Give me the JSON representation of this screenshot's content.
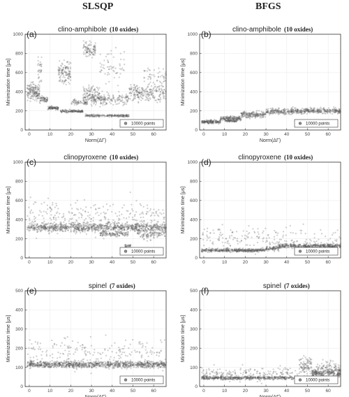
{
  "columns": [
    "SLSQP",
    "BFGS"
  ],
  "chart_data": [
    {
      "type": "scatter",
      "letter": "(a)",
      "title": "clino-amphibole",
      "subtitle": "(10 oxides)",
      "xlabel": "Norm(ΔΓ)",
      "ylabel": "Minimization time [μs]",
      "xlim": [
        -2,
        66
      ],
      "ylim": [
        0,
        1000
      ],
      "xticks": [
        0,
        10,
        20,
        30,
        40,
        50,
        60
      ],
      "yticks": [
        0,
        200,
        400,
        600,
        800,
        1000
      ],
      "legend": "10000 points",
      "legend_position": "bottom-right",
      "grid": true,
      "clusters": [
        {
          "x": [
            -1,
            5
          ],
          "y": 400,
          "spread": 60,
          "n": 160
        },
        {
          "x": [
            4,
            6
          ],
          "y": 640,
          "spread": 80,
          "n": 30
        },
        {
          "x": [
            5,
            9
          ],
          "y": 320,
          "spread": 25,
          "n": 60
        },
        {
          "x": [
            9,
            14
          ],
          "y": 230,
          "spread": 12,
          "n": 90
        },
        {
          "x": [
            14,
            20
          ],
          "y": 600,
          "spread": 80,
          "n": 120
        },
        {
          "x": [
            15,
            26
          ],
          "y": 195,
          "spread": 10,
          "n": 140
        },
        {
          "x": [
            20,
            28
          ],
          "y": 290,
          "spread": 20,
          "n": 60
        },
        {
          "x": [
            26,
            32
          ],
          "y": 840,
          "spread": 50,
          "n": 90
        },
        {
          "x": [
            26,
            34
          ],
          "y": 370,
          "spread": 60,
          "n": 120
        },
        {
          "x": [
            27,
            48
          ],
          "y": 150,
          "spread": 10,
          "n": 200
        },
        {
          "x": [
            30,
            48
          ],
          "y": 320,
          "spread": 40,
          "n": 170
        },
        {
          "x": [
            34,
            46
          ],
          "y": 650,
          "spread": 140,
          "n": 60
        },
        {
          "x": [
            48,
            66
          ],
          "y": 390,
          "spread": 60,
          "n": 220
        },
        {
          "x": [
            55,
            66
          ],
          "y": 560,
          "spread": 60,
          "n": 50
        }
      ]
    },
    {
      "type": "scatter",
      "letter": "(b)",
      "title": "clino-amphibole",
      "subtitle": "(10 oxides)",
      "xlabel": "Norm(ΔΓ)",
      "ylabel": "Minimization time [μs]",
      "xlim": [
        -2,
        66
      ],
      "ylim": [
        0,
        1000
      ],
      "xticks": [
        0,
        10,
        20,
        30,
        40,
        50,
        60
      ],
      "yticks": [
        0,
        200,
        400,
        600,
        800,
        1000
      ],
      "legend": "10000 points",
      "legend_position": "bottom-right",
      "grid": true,
      "clusters": [
        {
          "x": [
            -1,
            8
          ],
          "y": 85,
          "spread": 12,
          "n": 160
        },
        {
          "x": [
            8,
            18
          ],
          "y": 120,
          "spread": 18,
          "n": 160
        },
        {
          "x": [
            10,
            16
          ],
          "y": 95,
          "spread": 8,
          "n": 60
        },
        {
          "x": [
            18,
            30
          ],
          "y": 160,
          "spread": 22,
          "n": 180
        },
        {
          "x": [
            30,
            48
          ],
          "y": 195,
          "spread": 22,
          "n": 240
        },
        {
          "x": [
            48,
            66
          ],
          "y": 200,
          "spread": 20,
          "n": 240
        }
      ]
    },
    {
      "type": "scatter",
      "letter": "(c)",
      "title": "clinopyroxene",
      "subtitle": "(10 oxides)",
      "xlabel": "",
      "ylabel": "Minimization time [μs]",
      "xlim": [
        -2,
        66
      ],
      "ylim": [
        0,
        1000
      ],
      "xticks": [
        0,
        10,
        20,
        30,
        40,
        50,
        60
      ],
      "yticks": [
        0,
        200,
        400,
        600,
        800,
        1000
      ],
      "legend": "10000 points",
      "legend_position": "bottom-right",
      "grid": true,
      "clusters": [
        {
          "x": [
            -1,
            66
          ],
          "y": 320,
          "spread": 30,
          "n": 900
        },
        {
          "x": [
            -1,
            66
          ],
          "y": 420,
          "spread": 120,
          "n": 300
        },
        {
          "x": [
            34,
            48
          ],
          "y": 250,
          "spread": 20,
          "n": 120
        },
        {
          "x": [
            46,
            49
          ],
          "y": 125,
          "spread": 15,
          "n": 30
        },
        {
          "x": [
            52,
            66
          ],
          "y": 250,
          "spread": 40,
          "n": 120
        }
      ]
    },
    {
      "type": "scatter",
      "letter": "(d)",
      "title": "clinopyroxene",
      "subtitle": "(10 oxides)",
      "xlabel": "",
      "ylabel": "Minimization time [μs]",
      "xlim": [
        -2,
        66
      ],
      "ylim": [
        0,
        1000
      ],
      "xticks": [
        0,
        10,
        20,
        30,
        40,
        50,
        60
      ],
      "yticks": [
        0,
        200,
        400,
        600,
        800,
        1000
      ],
      "legend": "10000 points",
      "legend_position": "bottom-right",
      "grid": true,
      "clusters": [
        {
          "x": [
            -1,
            30
          ],
          "y": 80,
          "spread": 12,
          "n": 420
        },
        {
          "x": [
            30,
            36
          ],
          "y": 100,
          "spread": 15,
          "n": 80
        },
        {
          "x": [
            36,
            66
          ],
          "y": 125,
          "spread": 15,
          "n": 420
        },
        {
          "x": [
            -1,
            66
          ],
          "y": 200,
          "spread": 90,
          "n": 200
        }
      ]
    },
    {
      "type": "scatter",
      "letter": "(e)",
      "title": "spinel",
      "subtitle": "(7 oxides)",
      "xlabel": "Norm(ΔΓ)",
      "ylabel": "Minimization time [μs]",
      "xlim": [
        -2,
        66
      ],
      "ylim": [
        0,
        500
      ],
      "xticks": [
        0,
        10,
        20,
        30,
        40,
        50,
        60
      ],
      "yticks": [
        0,
        100,
        200,
        300,
        400,
        500
      ],
      "legend": "10000 points",
      "legend_position": "bottom-right",
      "grid": true,
      "clusters": [
        {
          "x": [
            -1,
            66
          ],
          "y": 115,
          "spread": 12,
          "n": 1000
        },
        {
          "x": [
            -1,
            66
          ],
          "y": 175,
          "spread": 55,
          "n": 220
        }
      ]
    },
    {
      "type": "scatter",
      "letter": "(f)",
      "title": "spinel",
      "subtitle": "(7 oxides)",
      "xlabel": "Norm(ΔΓ)",
      "ylabel": "Minimization time [μs]",
      "xlim": [
        -2,
        66
      ],
      "ylim": [
        0,
        500
      ],
      "xticks": [
        0,
        10,
        20,
        30,
        40,
        50,
        60
      ],
      "yticks": [
        0,
        100,
        200,
        300,
        400,
        500
      ],
      "legend": "10000 points",
      "legend_position": "bottom-right",
      "grid": true,
      "clusters": [
        {
          "x": [
            -1,
            46
          ],
          "y": 45,
          "spread": 6,
          "n": 520
        },
        {
          "x": [
            -1,
            46
          ],
          "y": 65,
          "spread": 25,
          "n": 200
        },
        {
          "x": [
            46,
            52
          ],
          "y": 110,
          "spread": 35,
          "n": 90
        },
        {
          "x": [
            52,
            66
          ],
          "y": 70,
          "spread": 15,
          "n": 260
        },
        {
          "x": [
            54,
            66
          ],
          "y": 100,
          "spread": 25,
          "n": 80
        }
      ]
    }
  ]
}
